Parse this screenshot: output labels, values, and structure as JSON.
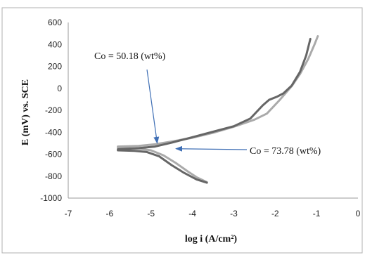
{
  "chart_data": {
    "type": "line",
    "title": "",
    "xlabel": "log i (A/cm²)",
    "ylabel": "E (mV) vs. SCE",
    "xlim": [
      -7,
      0
    ],
    "ylim": [
      -1000,
      600
    ],
    "x_ticks": [
      -7,
      -6,
      -5,
      -4,
      -3,
      -2,
      -1,
      0
    ],
    "y_ticks": [
      -1000,
      -800,
      -600,
      -400,
      -200,
      0,
      200,
      400,
      600
    ],
    "grid": false,
    "legend": "none",
    "annotations": [
      {
        "text": "Co = 50.18 (wt%)",
        "series_index": 0,
        "arrow_to": [
          -4.85,
          -500
        ]
      },
      {
        "text": "Co = 73.78 (wt%)",
        "series_index": 1,
        "arrow_to": [
          -4.4,
          -550
        ]
      }
    ],
    "series": [
      {
        "name": "",
        "color": "#aaaaaa",
        "anodic": [
          [
            -5.8,
            -530
          ],
          [
            -5.3,
            -525
          ],
          [
            -4.9,
            -510
          ],
          [
            -4.5,
            -485
          ],
          [
            -4,
            -450
          ],
          [
            -3.5,
            -405
          ],
          [
            -3,
            -350
          ],
          [
            -2.5,
            -285
          ],
          [
            -2.2,
            -230
          ],
          [
            -1.9,
            -110
          ],
          [
            -1.6,
            20
          ],
          [
            -1.4,
            130
          ],
          [
            -1.2,
            270
          ],
          [
            -1.05,
            400
          ],
          [
            -0.97,
            475
          ]
        ],
        "cathodic": [
          [
            -5.8,
            -540
          ],
          [
            -5.3,
            -550
          ],
          [
            -5,
            -565
          ],
          [
            -4.7,
            -610
          ],
          [
            -4.4,
            -680
          ],
          [
            -4.1,
            -760
          ],
          [
            -3.9,
            -810
          ],
          [
            -3.65,
            -855
          ]
        ]
      },
      {
        "name": "",
        "color": "#666666",
        "anodic": [
          [
            -5.8,
            -555
          ],
          [
            -5.3,
            -545
          ],
          [
            -4.9,
            -530
          ],
          [
            -4.5,
            -495
          ],
          [
            -4,
            -445
          ],
          [
            -3.5,
            -395
          ],
          [
            -3,
            -345
          ],
          [
            -2.6,
            -275
          ],
          [
            -2.3,
            -155
          ],
          [
            -2.15,
            -105
          ],
          [
            -1.95,
            -75
          ],
          [
            -1.8,
            -45
          ],
          [
            -1.6,
            25
          ],
          [
            -1.4,
            150
          ],
          [
            -1.25,
            300
          ],
          [
            -1.15,
            450
          ]
        ],
        "cathodic": [
          [
            -5.8,
            -565
          ],
          [
            -5.4,
            -570
          ],
          [
            -5.1,
            -580
          ],
          [
            -4.8,
            -620
          ],
          [
            -4.5,
            -700
          ],
          [
            -4.2,
            -770
          ],
          [
            -3.9,
            -830
          ],
          [
            -3.65,
            -860
          ]
        ]
      }
    ]
  }
}
